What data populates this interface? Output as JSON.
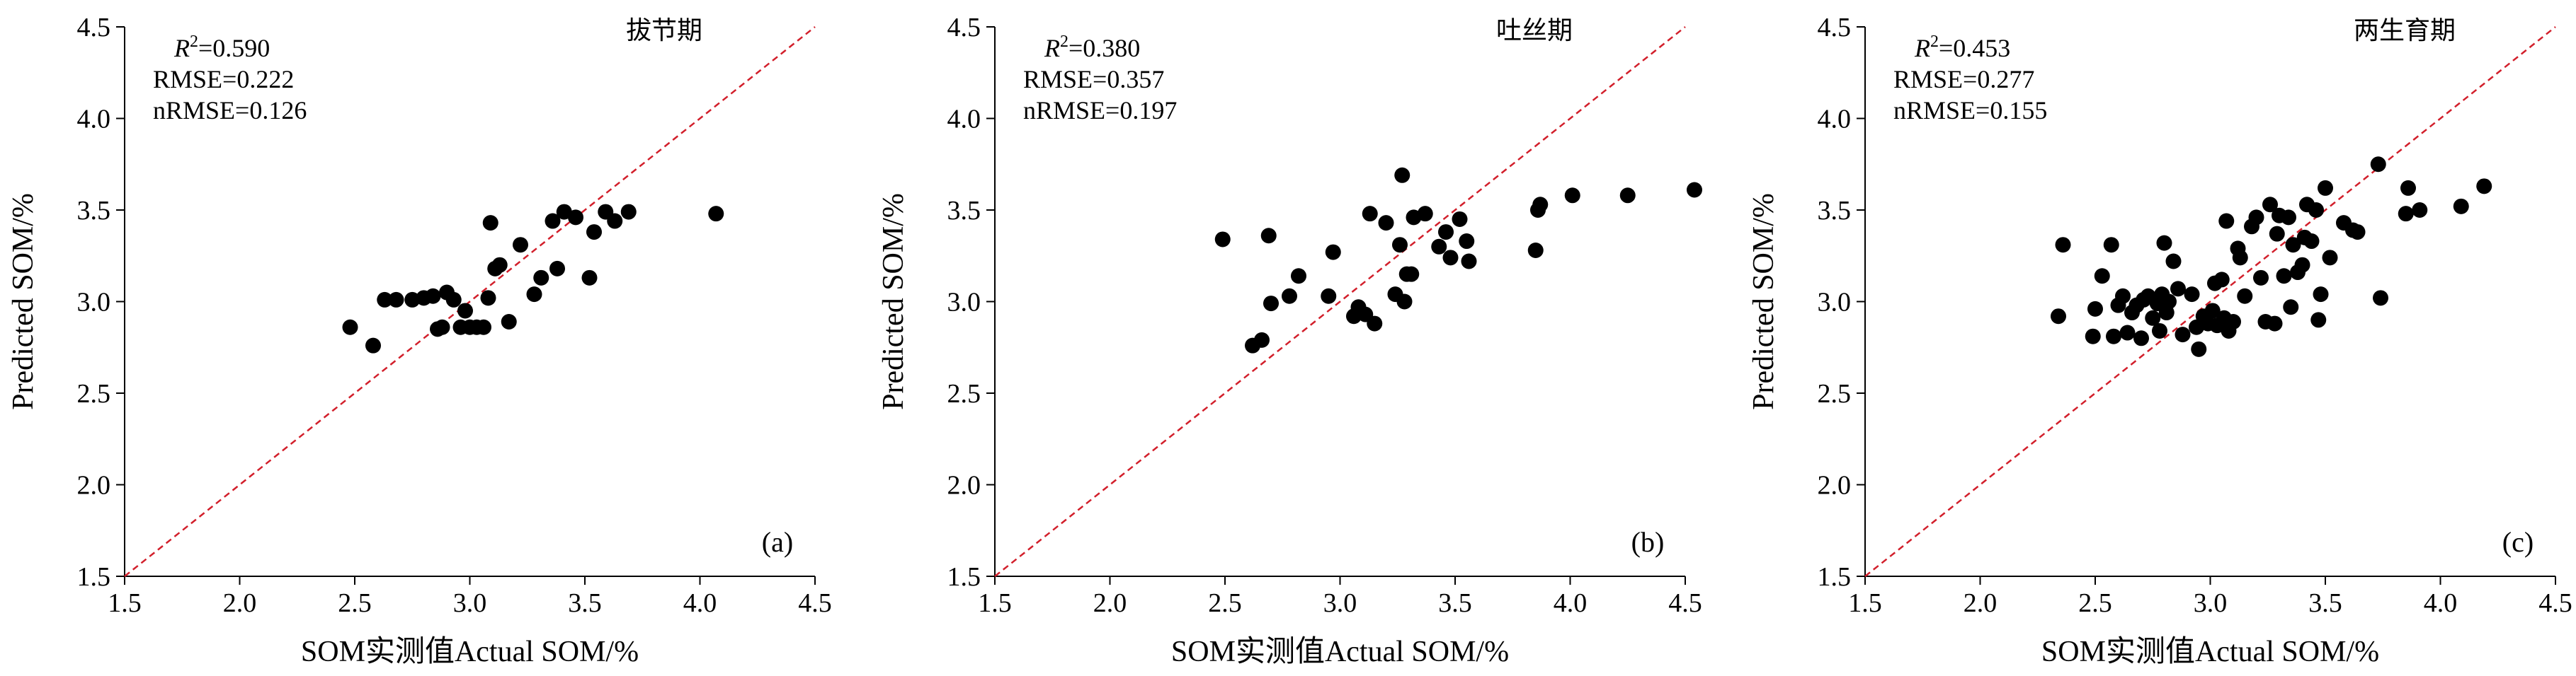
{
  "chart_data": [
    {
      "type": "scatter",
      "panel": "(a)",
      "stage": "拔节期",
      "stats": {
        "r2": "=0.590",
        "rmse": "RMSE=0.222",
        "nrmse": "nRMSE=0.126"
      },
      "xlabel": "SOM实测值Actual SOM/%",
      "ylabel": "Predicted SOM/%",
      "xlim": [
        1.5,
        4.5
      ],
      "ylim": [
        1.5,
        4.5
      ],
      "ticks": [
        "1.5",
        "2.0",
        "2.5",
        "3.0",
        "3.5",
        "4.0",
        "4.5"
      ],
      "reference_line": "1:1",
      "points": [
        [
          2.48,
          2.86
        ],
        [
          2.58,
          2.76
        ],
        [
          2.63,
          3.01
        ],
        [
          2.68,
          3.01
        ],
        [
          2.75,
          3.01
        ],
        [
          2.8,
          3.02
        ],
        [
          2.84,
          3.03
        ],
        [
          2.86,
          2.85
        ],
        [
          2.88,
          2.86
        ],
        [
          2.9,
          3.05
        ],
        [
          2.93,
          3.01
        ],
        [
          2.96,
          2.86
        ],
        [
          2.98,
          2.95
        ],
        [
          3.0,
          2.86
        ],
        [
          3.03,
          2.86
        ],
        [
          3.06,
          2.86
        ],
        [
          3.08,
          3.02
        ],
        [
          3.09,
          3.43
        ],
        [
          3.11,
          3.18
        ],
        [
          3.13,
          3.2
        ],
        [
          3.17,
          2.89
        ],
        [
          3.22,
          3.31
        ],
        [
          3.28,
          3.04
        ],
        [
          3.31,
          3.13
        ],
        [
          3.36,
          3.44
        ],
        [
          3.38,
          3.18
        ],
        [
          3.41,
          3.49
        ],
        [
          3.46,
          3.46
        ],
        [
          3.52,
          3.13
        ],
        [
          3.54,
          3.38
        ],
        [
          3.59,
          3.49
        ],
        [
          3.63,
          3.44
        ],
        [
          3.69,
          3.49
        ],
        [
          4.07,
          3.48
        ]
      ]
    },
    {
      "type": "scatter",
      "panel": "(b)",
      "stage": "吐丝期",
      "stats": {
        "r2": "=0.380",
        "rmse": "RMSE=0.357",
        "nrmse": "nRMSE=0.197"
      },
      "xlabel": "SOM实测值Actual SOM/%",
      "ylabel": "Predicted SOM/%",
      "xlim": [
        1.5,
        4.5
      ],
      "ylim": [
        1.5,
        4.5
      ],
      "ticks": [
        "1.5",
        "2.0",
        "2.5",
        "3.0",
        "3.5",
        "4.0",
        "4.5"
      ],
      "reference_line": "1:1",
      "points": [
        [
          2.49,
          3.34
        ],
        [
          2.62,
          2.76
        ],
        [
          2.66,
          2.79
        ],
        [
          2.69,
          3.36
        ],
        [
          2.7,
          2.99
        ],
        [
          2.78,
          3.03
        ],
        [
          2.82,
          3.14
        ],
        [
          2.95,
          3.03
        ],
        [
          2.97,
          3.27
        ],
        [
          3.06,
          2.92
        ],
        [
          3.08,
          2.97
        ],
        [
          3.11,
          2.93
        ],
        [
          3.13,
          3.48
        ],
        [
          3.15,
          2.88
        ],
        [
          3.2,
          3.43
        ],
        [
          3.24,
          3.04
        ],
        [
          3.26,
          3.31
        ],
        [
          3.27,
          3.69
        ],
        [
          3.28,
          3.0
        ],
        [
          3.29,
          3.15
        ],
        [
          3.31,
          3.15
        ],
        [
          3.32,
          3.46
        ],
        [
          3.37,
          3.48
        ],
        [
          3.43,
          3.3
        ],
        [
          3.46,
          3.38
        ],
        [
          3.48,
          3.24
        ],
        [
          3.52,
          3.45
        ],
        [
          3.55,
          3.33
        ],
        [
          3.56,
          3.22
        ],
        [
          3.85,
          3.28
        ],
        [
          3.86,
          3.5
        ],
        [
          3.87,
          3.53
        ],
        [
          4.01,
          3.58
        ],
        [
          4.25,
          3.58
        ],
        [
          4.54,
          3.61
        ]
      ]
    },
    {
      "type": "scatter",
      "panel": "(c)",
      "stage": "两生育期",
      "stats": {
        "r2": "=0.453",
        "rmse": "RMSE=0.277",
        "nrmse": "nRMSE=0.155"
      },
      "xlabel": "SOM实测值Actual SOM/%",
      "ylabel": "Predicted SOM/%",
      "xlim": [
        1.5,
        4.5
      ],
      "ylim": [
        1.5,
        4.5
      ],
      "ticks": [
        "1.5",
        "2.0",
        "2.5",
        "3.0",
        "3.5",
        "4.0",
        "4.5"
      ],
      "reference_line": "1:1",
      "points": [
        [
          2.34,
          2.92
        ],
        [
          2.36,
          3.31
        ],
        [
          2.49,
          2.81
        ],
        [
          2.5,
          2.96
        ],
        [
          2.53,
          3.14
        ],
        [
          2.57,
          3.31
        ],
        [
          2.58,
          2.81
        ],
        [
          2.6,
          2.98
        ],
        [
          2.62,
          3.03
        ],
        [
          2.64,
          2.83
        ],
        [
          2.66,
          2.94
        ],
        [
          2.68,
          2.98
        ],
        [
          2.7,
          2.8
        ],
        [
          2.71,
          3.01
        ],
        [
          2.73,
          3.03
        ],
        [
          2.75,
          2.91
        ],
        [
          2.77,
          2.99
        ],
        [
          2.78,
          2.84
        ],
        [
          2.79,
          3.04
        ],
        [
          2.8,
          3.32
        ],
        [
          2.81,
          2.94
        ],
        [
          2.82,
          3.0
        ],
        [
          2.84,
          3.22
        ],
        [
          2.86,
          3.07
        ],
        [
          2.88,
          2.82
        ],
        [
          2.92,
          3.04
        ],
        [
          2.94,
          2.86
        ],
        [
          2.95,
          2.74
        ],
        [
          2.97,
          2.92
        ],
        [
          2.99,
          2.88
        ],
        [
          3.01,
          2.95
        ],
        [
          3.02,
          3.1
        ],
        [
          3.03,
          2.87
        ],
        [
          3.05,
          3.12
        ],
        [
          3.06,
          2.91
        ],
        [
          3.07,
          3.44
        ],
        [
          3.08,
          2.84
        ],
        [
          3.1,
          2.89
        ],
        [
          3.12,
          3.29
        ],
        [
          3.13,
          3.24
        ],
        [
          3.15,
          3.03
        ],
        [
          3.18,
          3.41
        ],
        [
          3.2,
          3.46
        ],
        [
          3.22,
          3.13
        ],
        [
          3.24,
          2.89
        ],
        [
          3.26,
          3.53
        ],
        [
          3.28,
          2.88
        ],
        [
          3.29,
          3.37
        ],
        [
          3.3,
          3.47
        ],
        [
          3.32,
          3.14
        ],
        [
          3.34,
          3.46
        ],
        [
          3.35,
          2.97
        ],
        [
          3.36,
          3.31
        ],
        [
          3.38,
          3.16
        ],
        [
          3.4,
          3.2
        ],
        [
          3.41,
          3.35
        ],
        [
          3.42,
          3.53
        ],
        [
          3.44,
          3.33
        ],
        [
          3.46,
          3.5
        ],
        [
          3.47,
          2.9
        ],
        [
          3.48,
          3.04
        ],
        [
          3.5,
          3.62
        ],
        [
          3.52,
          3.24
        ],
        [
          3.58,
          3.43
        ],
        [
          3.62,
          3.39
        ],
        [
          3.64,
          3.38
        ],
        [
          3.73,
          3.75
        ],
        [
          3.74,
          3.02
        ],
        [
          3.85,
          3.48
        ],
        [
          3.86,
          3.62
        ],
        [
          3.91,
          3.5
        ],
        [
          4.09,
          3.52
        ],
        [
          4.19,
          3.63
        ]
      ]
    }
  ]
}
